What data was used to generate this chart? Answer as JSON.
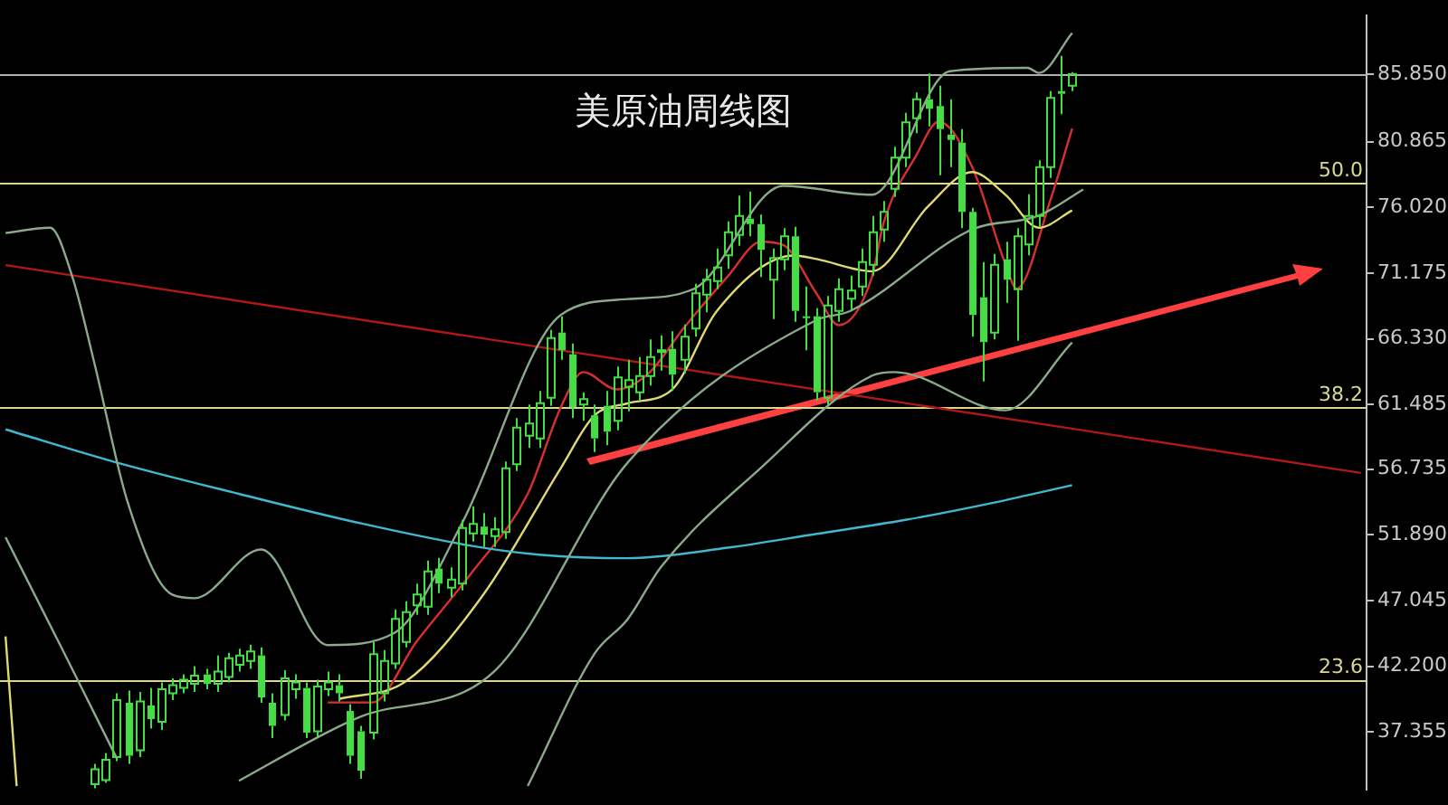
{
  "chart_data": {
    "type": "candlestick",
    "title": "美原油周线图",
    "color": "#44dd44",
    "tick_labels": "y",
    "categories": [
      null,
      null,
      null,
      null,
      null,
      null,
      null,
      null,
      null,
      null,
      null,
      null,
      null,
      null,
      null,
      null,
      null,
      null,
      null,
      null,
      null,
      null,
      null,
      null,
      null,
      null,
      null,
      null,
      null,
      null,
      null,
      null,
      null,
      null,
      null,
      null,
      null,
      null,
      null,
      null,
      null,
      null,
      null,
      null,
      null,
      null,
      null,
      null,
      null,
      null,
      null,
      null,
      null,
      null,
      null,
      null,
      null,
      null,
      null,
      null,
      null,
      null,
      null,
      null,
      null,
      null,
      null,
      null,
      null,
      null,
      null,
      null,
      null,
      null,
      null,
      null,
      null,
      null,
      null,
      null,
      null,
      null,
      null,
      null,
      null,
      null,
      null,
      null,
      null,
      null,
      null,
      null,
      null,
      null,
      null,
      null,
      null,
      null,
      null,
      null,
      null,
      null,
      null,
      null,
      null,
      null,
      null,
      null,
      null,
      null,
      null,
      null,
      null,
      null,
      null,
      null,
      null,
      null,
      null,
      null,
      null,
      null,
      null
    ],
    "ohlc": [
      null,
      null,
      null,
      null,
      null,
      null,
      null,
      null,
      [
        33.5,
        35.0,
        33.2,
        34.6
      ],
      [
        33.8,
        35.8,
        33.6,
        35.3
      ],
      [
        35.5,
        40.2,
        35.2,
        39.7
      ],
      [
        39.5,
        40.4,
        35.0,
        35.6
      ],
      [
        36.0,
        40.3,
        35.5,
        39.6
      ],
      [
        39.3,
        40.6,
        37.6,
        38.3
      ],
      [
        38.1,
        41.0,
        37.5,
        40.5
      ],
      [
        40.2,
        41.3,
        39.7,
        40.8
      ],
      [
        40.6,
        41.6,
        40.2,
        41.2
      ],
      [
        40.9,
        42.2,
        40.3,
        41.5
      ],
      [
        41.6,
        42.0,
        40.5,
        40.9
      ],
      [
        40.9,
        43.0,
        40.3,
        41.8
      ],
      [
        41.4,
        43.2,
        41.0,
        42.8
      ],
      [
        42.3,
        43.5,
        41.8,
        43.0
      ],
      [
        42.6,
        43.8,
        42.0,
        43.3
      ],
      [
        43.0,
        43.6,
        39.5,
        39.9
      ],
      [
        39.5,
        40.2,
        36.9,
        37.8
      ],
      [
        38.6,
        41.9,
        38.2,
        41.3
      ],
      [
        40.5,
        41.6,
        39.8,
        41.0
      ],
      [
        40.6,
        41.0,
        36.9,
        37.3
      ],
      [
        37.4,
        41.2,
        37.0,
        40.7
      ],
      [
        40.5,
        41.8,
        40.0,
        41.0
      ],
      [
        40.8,
        41.6,
        39.6,
        40.2
      ],
      [
        38.9,
        39.4,
        35.0,
        35.6
      ],
      [
        37.4,
        37.8,
        33.9,
        34.5
      ],
      [
        37.3,
        44.0,
        36.8,
        43.1
      ],
      [
        40.2,
        43.4,
        39.6,
        42.6
      ],
      [
        42.4,
        46.4,
        42.0,
        45.7
      ],
      [
        44.0,
        47.0,
        43.6,
        46.2
      ],
      [
        46.7,
        48.3,
        46.0,
        47.5
      ],
      [
        46.6,
        50.0,
        46.0,
        49.2
      ],
      [
        49.4,
        50.2,
        47.6,
        48.3
      ],
      [
        48.0,
        49.5,
        47.3,
        48.6
      ],
      [
        48.3,
        53.0,
        47.8,
        52.4
      ],
      [
        52.0,
        54.0,
        51.4,
        52.7
      ],
      [
        52.5,
        53.5,
        51.0,
        51.9
      ],
      [
        51.8,
        53.2,
        51.0,
        52.3
      ],
      [
        52.1,
        57.3,
        51.6,
        56.8
      ],
      [
        57.1,
        60.5,
        56.6,
        59.8
      ],
      [
        59.2,
        61.5,
        58.3,
        60.1
      ],
      [
        59.0,
        62.5,
        58.3,
        61.6
      ],
      [
        62.0,
        67.0,
        61.4,
        66.4
      ],
      [
        66.8,
        68.0,
        64.8,
        65.5
      ],
      [
        65.2,
        66.0,
        60.5,
        61.3
      ],
      [
        61.5,
        62.4,
        60.3,
        61.9
      ],
      [
        60.7,
        61.5,
        58.0,
        59.0
      ],
      [
        61.4,
        62.5,
        58.5,
        59.5
      ],
      [
        60.3,
        64.3,
        59.6,
        63.5
      ],
      [
        62.8,
        64.8,
        61.0,
        63.3
      ],
      [
        62.4,
        65.0,
        61.8,
        63.6
      ],
      [
        63.6,
        66.3,
        62.9,
        65.0
      ],
      [
        65.5,
        66.6,
        64.0,
        65.5
      ],
      [
        65.6,
        66.9,
        62.5,
        63.7
      ],
      [
        64.8,
        67.4,
        63.8,
        66.5
      ],
      [
        67.1,
        70.4,
        66.5,
        69.7
      ],
      [
        69.6,
        71.5,
        68.3,
        70.7
      ],
      [
        70.6,
        73.0,
        70.0,
        71.6
      ],
      [
        72.5,
        75.0,
        71.5,
        74.2
      ],
      [
        74.0,
        76.9,
        73.2,
        75.4
      ],
      [
        75.2,
        77.2,
        73.9,
        74.8
      ],
      [
        74.8,
        75.5,
        70.9,
        72.9
      ],
      [
        70.7,
        73.0,
        67.8,
        72.3
      ],
      [
        72.2,
        74.5,
        71.4,
        73.9
      ],
      [
        73.9,
        74.6,
        67.6,
        68.4
      ],
      [
        68.0,
        70.2,
        65.5,
        67.9
      ],
      [
        68.0,
        68.6,
        61.8,
        62.4
      ],
      [
        62.0,
        69.5,
        61.5,
        68.8
      ],
      [
        68.4,
        70.8,
        67.6,
        70.0
      ],
      [
        69.3,
        71.0,
        68.5,
        69.9
      ],
      [
        70.2,
        73.0,
        69.5,
        72.0
      ],
      [
        71.8,
        75.4,
        71.0,
        74.2
      ],
      [
        74.4,
        76.5,
        73.5,
        75.7
      ],
      [
        77.4,
        80.5,
        76.8,
        79.7
      ],
      [
        79.7,
        83.0,
        79.0,
        82.3
      ],
      [
        82.6,
        84.5,
        81.5,
        84.0
      ],
      [
        84.0,
        85.9,
        82.0,
        83.3
      ],
      [
        83.5,
        85.0,
        78.4,
        81.8
      ],
      [
        81.4,
        84.0,
        79.0,
        81.0
      ],
      [
        80.8,
        81.8,
        74.5,
        75.7
      ],
      [
        75.7,
        76.0,
        66.5,
        68.1
      ],
      [
        69.4,
        72.0,
        63.2,
        66.1
      ],
      [
        66.8,
        72.6,
        66.3,
        71.8
      ],
      [
        72.2,
        73.5,
        69.0,
        70.7
      ],
      [
        70.0,
        74.5,
        66.2,
        73.9
      ],
      [
        73.3,
        77.0,
        72.5,
        75.4
      ],
      [
        75.4,
        79.5,
        74.6,
        79.0
      ],
      [
        79.0,
        84.6,
        78.2,
        84.1
      ],
      [
        84.6,
        87.2,
        82.9,
        84.4
      ],
      [
        85.0,
        86.0,
        84.6,
        85.85
      ],
      null,
      null,
      null,
      null,
      null,
      null,
      null,
      null,
      null,
      null,
      null,
      null,
      null,
      null,
      null,
      null,
      null,
      null,
      null,
      null,
      null,
      null,
      null,
      null,
      null,
      null
    ],
    "series": [
      {
        "type": "line",
        "color": "#8aaa8a",
        "values": [
          74.14,
          null,
          null,
          null,
          74.53,
          null,
          70.94,
          null,
          64.53,
          null,
          null,
          54.27,
          null,
          null,
          null,
          47.48,
          null,
          47.22,
          null,
          null,
          null,
          null,
          null,
          50.81,
          null,
          null,
          null,
          null,
          null,
          43.76,
          null,
          null,
          null,
          null,
          null,
          44.66,
          null,
          null,
          null,
          null,
          null,
          52.61,
          null,
          null,
          null,
          null,
          null,
          null,
          null,
          null,
          68.12,
          null,
          null,
          null,
          null,
          null,
          69.27,
          null,
          null,
          null,
          null,
          null,
          70.04,
          null,
          null,
          null,
          null,
          null,
          null,
          null,
          77.61,
          null,
          null,
          null,
          null,
          null,
          null,
          null,
          76.96,
          null,
          null,
          null,
          null,
          null,
          null,
          86.07,
          null,
          null,
          null,
          null,
          null,
          null,
          86.32,
          85.94,
          null,
          null,
          88.89,
          null,
          null,
          null,
          null,
          null,
          null,
          null,
          null,
          null,
          null,
          null,
          null,
          null,
          null,
          null,
          null,
          null,
          null,
          null,
          null,
          null,
          null,
          null,
          null,
          null,
          null
        ]
      },
      {
        "type": "line",
        "color": "#8aaa8a",
        "values": [
          null,
          null,
          null,
          null,
          null,
          null,
          null,
          null,
          null,
          null,
          null,
          null,
          null,
          null,
          null,
          null,
          null,
          null,
          null,
          null,
          null,
          33.76,
          null,
          null,
          null,
          null,
          null,
          null,
          null,
          37.35,
          null,
          null,
          38.5,
          null,
          null,
          null,
          null,
          null,
          null,
          null,
          null,
          null,
          null,
          null,
          41.84,
          null,
          null,
          null,
          null,
          null,
          null,
          null,
          null,
          null,
          null,
          null,
          57.22,
          null,
          null,
          null,
          null,
          null,
          null,
          null,
          null,
          null,
          null,
          null,
          null,
          null,
          null,
          null,
          null,
          67.73,
          null,
          null,
          68.38,
          null,
          null,
          null,
          null,
          null,
          null,
          null,
          null,
          null,
          null,
          74.4,
          null,
          null,
          null,
          null,
          null,
          75.43,
          null,
          null,
          null,
          77.35,
          null,
          null,
          null,
          null,
          null,
          null,
          null,
          null,
          null,
          null,
          null,
          null,
          null,
          null,
          null,
          null,
          null,
          null,
          null,
          null,
          null,
          null,
          null,
          null,
          null
        ]
      },
      {
        "type": "line",
        "color": "#8aaa8a",
        "values": [
          51.71,
          null,
          null,
          null,
          null,
          43.63,
          null,
          null,
          null,
          null,
          35.43,
          null,
          null,
          null,
          null,
          null,
          null,
          null,
          null,
          null,
          null,
          null,
          null,
          null,
          null,
          null,
          null,
          null,
          null,
          null,
          null,
          null,
          null,
          null,
          null,
          null,
          null,
          null,
          null,
          null,
          null,
          null,
          null,
          null,
          null,
          null,
          null,
          null,
          null,
          null,
          null,
          null,
          null,
          null,
          null,
          null,
          null,
          null,
          null,
          null,
          null,
          null,
          null,
          null,
          null,
          null,
          null,
          null,
          null,
          null,
          null,
          null,
          null,
          null,
          null,
          null,
          null,
          null,
          null,
          null,
          null,
          null,
          null,
          null,
          null,
          null,
          null,
          null,
          null,
          null,
          null,
          null,
          null,
          null,
          null,
          null,
          null,
          null,
          null,
          null,
          null,
          null,
          null,
          null,
          null,
          null,
          null,
          null,
          null,
          null,
          null,
          null,
          null,
          null,
          null,
          null,
          null,
          null,
          null,
          null,
          null,
          null,
          null
        ]
      },
      {
        "type": "line",
        "color": "#8aaa8a",
        "values": [
          null,
          null,
          null,
          null,
          null,
          null,
          null,
          null,
          null,
          null,
          null,
          null,
          null,
          null,
          null,
          null,
          null,
          null,
          null,
          null,
          null,
          null,
          null,
          null,
          null,
          null,
          null,
          null,
          null,
          null,
          null,
          null,
          null,
          null,
          null,
          null,
          null,
          null,
          null,
          null,
          null,
          null,
          null,
          null,
          null,
          null,
          null,
          33.37,
          null,
          null,
          null,
          null,
          null,
          43.12,
          null,
          null,
          45.68,
          null,
          null,
          49.53,
          null,
          null,
          null,
          null,
          null,
          null,
          null,
          null,
          56.84,
          null,
          null,
          null,
          null,
          null,
          null,
          null,
          null,
          null,
          63.63,
          null,
          63.89,
          null,
          null,
          null,
          null,
          null,
          null,
          null,
          null,
          null,
          61.07,
          null,
          null,
          null,
          null,
          null,
          66.07,
          null,
          null,
          null,
          null,
          null,
          null,
          null,
          null,
          null,
          null,
          null,
          null,
          null,
          null,
          null,
          null,
          null,
          null,
          null,
          null,
          null,
          null,
          null,
          null,
          null,
          null
        ]
      },
      {
        "type": "line",
        "color": "#40b8d0",
        "values": [
          59.66,
          null,
          null,
          null,
          null,
          null,
          null,
          null,
          null,
          null,
          57.22,
          null,
          null,
          null,
          null,
          null,
          null,
          null,
          null,
          null,
          null,
          54.91,
          null,
          null,
          null,
          null,
          null,
          null,
          null,
          null,
          null,
          null,
          52.73,
          null,
          null,
          null,
          null,
          null,
          null,
          null,
          null,
          null,
          51.07,
          null,
          null,
          null,
          null,
          null,
          50.43,
          null,
          null,
          null,
          null,
          null,
          null,
          null,
          50.17,
          null,
          null,
          null,
          null,
          null,
          null,
          null,
          null,
          50.94,
          null,
          null,
          null,
          null,
          null,
          null,
          null,
          51.96,
          null,
          null,
          null,
          null,
          null,
          null,
          null,
          52.99,
          null,
          null,
          null,
          null,
          null,
          null,
          null,
          54.27,
          null,
          null,
          null,
          null,
          null,
          null,
          55.55,
          null,
          null,
          null,
          null,
          null,
          null,
          null,
          null,
          null,
          null,
          null,
          null,
          null,
          null,
          null,
          null,
          null,
          null,
          null,
          null,
          null,
          null,
          null,
          null,
          null,
          null
        ]
      },
      {
        "type": "line",
        "color": "#e0d870",
        "values": [
          44.4,
          33.37,
          null,
          null,
          null,
          null,
          null,
          null,
          null,
          null,
          null,
          null,
          null,
          null,
          null,
          null,
          null,
          null,
          null,
          null,
          null,
          null,
          null,
          null,
          null,
          null,
          null,
          null,
          null,
          null,
          null,
          null,
          null,
          null,
          null,
          null,
          null,
          null,
          null,
          null,
          null,
          null,
          null,
          null,
          null,
          null,
          null,
          null,
          null,
          null,
          null,
          null,
          null,
          null,
          null,
          null,
          null,
          null,
          null,
          null,
          null,
          null,
          null,
          null,
          null,
          null,
          null,
          null,
          null,
          null,
          null,
          null,
          null,
          null,
          null,
          null,
          null,
          null,
          null,
          null,
          null,
          null,
          null,
          null,
          null,
          null,
          null,
          null,
          null,
          null,
          null,
          null,
          null,
          null,
          null,
          null,
          null,
          null,
          null,
          null,
          null,
          null,
          null,
          null,
          null,
          null,
          null,
          null,
          null,
          null,
          null,
          null,
          null,
          null,
          null,
          null,
          null,
          null,
          null,
          null,
          null,
          null,
          null
        ]
      },
      {
        "type": "line",
        "color": "#e0d870",
        "values": [
          null,
          null,
          null,
          null,
          null,
          null,
          null,
          null,
          null,
          null,
          null,
          null,
          null,
          null,
          null,
          null,
          null,
          null,
          null,
          null,
          null,
          null,
          null,
          null,
          null,
          null,
          null,
          null,
          null,
          null,
          39.79,
          null,
          null,
          null,
          null,
          null,
          41.07,
          null,
          null,
          null,
          null,
          null,
          null,
          47.48,
          null,
          null,
          null,
          null,
          null,
          null,
          56.84,
          null,
          null,
          60.68,
          null,
          null,
          61.58,
          null,
          null,
          null,
          62.61,
          null,
          null,
          null,
          68.37,
          null,
          null,
          null,
          null,
          null,
          null,
          72.48,
          null,
          72.22,
          null,
          null,
          null,
          null,
          71.32,
          null,
          null,
          null,
          null,
          76.07,
          null,
          null,
          null,
          78.63,
          null,
          null,
          76.96,
          null,
          null,
          74.53,
          null,
          null,
          75.81,
          null,
          null,
          null,
          null,
          null,
          null,
          null,
          null,
          null,
          null,
          null,
          null,
          null,
          null,
          null,
          null,
          null,
          null,
          null,
          null,
          null,
          null,
          null,
          null,
          null,
          null
        ]
      },
      {
        "type": "line",
        "color": "#d83030",
        "values": [
          null,
          null,
          null,
          null,
          null,
          null,
          null,
          null,
          null,
          null,
          null,
          null,
          null,
          null,
          null,
          null,
          null,
          null,
          null,
          null,
          null,
          null,
          null,
          null,
          null,
          null,
          null,
          null,
          null,
          39.53,
          null,
          null,
          null,
          39.53,
          null,
          null,
          null,
          44.02,
          null,
          null,
          null,
          null,
          49.14,
          null,
          null,
          null,
          null,
          54.91,
          null,
          null,
          61.33,
          null,
          63.89,
          null,
          null,
          62.61,
          null,
          null,
          63.89,
          null,
          null,
          67.09,
          null,
          null,
          null,
          70.94,
          null,
          null,
          73.5,
          null,
          73.25,
          null,
          null,
          69.66,
          null,
          67.35,
          null,
          null,
          70.94,
          74.79,
          null,
          null,
          79.91,
          null,
          82.35,
          null,
          null,
          79.02,
          null,
          null,
          71.84,
          70.04,
          null,
          null,
          76.45,
          null,
          81.84,
          null,
          null,
          null,
          null,
          null,
          null,
          null,
          null,
          null,
          null,
          null,
          null,
          null,
          null,
          null,
          null,
          null,
          null,
          null,
          null,
          null,
          null,
          null,
          null,
          null,
          null
        ]
      },
      {
        "type": "line",
        "color": "#b01818",
        "values": [
          71.77,
          null,
          null,
          null,
          null,
          null,
          null,
          null,
          null,
          null,
          null,
          null,
          null,
          null,
          null,
          null,
          null,
          null,
          null,
          null,
          null,
          null,
          null,
          null,
          null,
          null,
          null,
          null,
          null,
          null,
          null,
          null,
          null,
          null,
          null,
          null,
          null,
          null,
          null,
          null,
          null,
          null,
          null,
          null,
          null,
          null,
          null,
          null,
          null,
          null,
          null,
          null,
          null,
          null,
          null,
          null,
          null,
          null,
          null,
          null,
          null,
          null,
          null,
          null,
          null,
          null,
          null,
          null,
          null,
          null,
          null,
          null,
          null,
          null,
          null,
          null,
          null,
          null,
          null,
          null,
          null,
          null,
          null,
          null,
          null,
          null,
          null,
          null,
          null,
          null,
          null,
          null,
          null,
          null,
          null,
          null,
          null,
          null,
          null,
          null,
          null,
          null,
          null,
          null,
          null,
          null,
          null,
          null,
          null,
          null,
          null,
          null,
          null,
          null,
          null,
          null,
          null,
          null,
          null,
          null,
          null,
          null,
          56.45
        ]
      }
    ],
    "ylim": [
      33.12,
      90.17
    ],
    "yticks": [
      {
        "value": 85.85,
        "label": "85.850"
      },
      80.865,
      {
        "value": 76.02,
        "label": "76.020"
      },
      71.175,
      {
        "value": 66.33,
        "label": "66.330"
      },
      {
        "value": 61.485,
        "label": "61.485"
      },
      56.735,
      {
        "value": 51.89,
        "label": "51.890"
      },
      47.045,
      {
        "value": 42.2,
        "label": "42.200"
      },
      37.355
    ],
    "ref_lines": [
      {
        "axis": "y",
        "value": 85.85,
        "color": "#b0b0b0"
      },
      {
        "axis": "y",
        "value": 77.83,
        "color": "#d8d890"
      },
      {
        "axis": "y",
        "value": 61.3,
        "color": "#d8d890"
      },
      {
        "axis": "y",
        "value": 41.2,
        "color": "#d8d890"
      }
    ],
    "annotations": [
      {
        "text": "50.0",
        "y": 77.83
      },
      {
        "text": "38.2",
        "y": 61.3
      },
      {
        "text": "23.6",
        "y": 41.2
      }
    ]
  }
}
